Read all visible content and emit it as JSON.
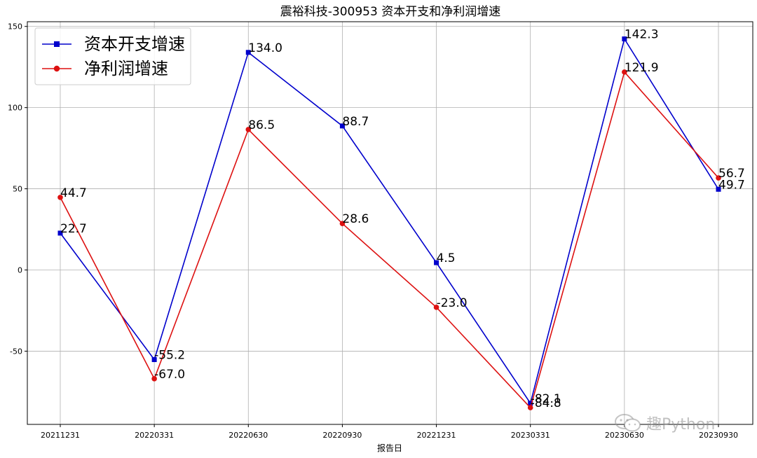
{
  "chart_data": {
    "type": "line",
    "title": "震裕科技-300953 资本开支和净利润增速",
    "xlabel": "报告日",
    "ylabel": "",
    "categories": [
      "20211231",
      "20220331",
      "20220630",
      "20220930",
      "20221231",
      "20230331",
      "20230630",
      "20230930"
    ],
    "ylim": [
      -95.1,
      152.9
    ],
    "yticks": [
      -50,
      0,
      50,
      100,
      150
    ],
    "grid": true,
    "legend_position": "top-left",
    "series": [
      {
        "name": "资本开支增速",
        "color": "#0000cc",
        "marker": "square",
        "values": [
          22.7,
          -55.2,
          134.0,
          88.7,
          4.5,
          -82.1,
          142.3,
          49.7
        ],
        "labels": [
          "22.7",
          "-55.2",
          "134.0",
          "88.7",
          "4.5",
          "-82.1",
          "142.3",
          "49.7"
        ]
      },
      {
        "name": "净利润增速",
        "color": "#dd1111",
        "marker": "circle",
        "values": [
          44.7,
          -67.0,
          86.5,
          28.6,
          -23.0,
          -84.8,
          121.9,
          56.7
        ],
        "labels": [
          "44.7",
          "-67.0",
          "86.5",
          "28.6",
          "-23.0",
          "-84.8",
          "121.9",
          "56.7"
        ]
      }
    ]
  },
  "watermark": {
    "text": "趣Python"
  }
}
